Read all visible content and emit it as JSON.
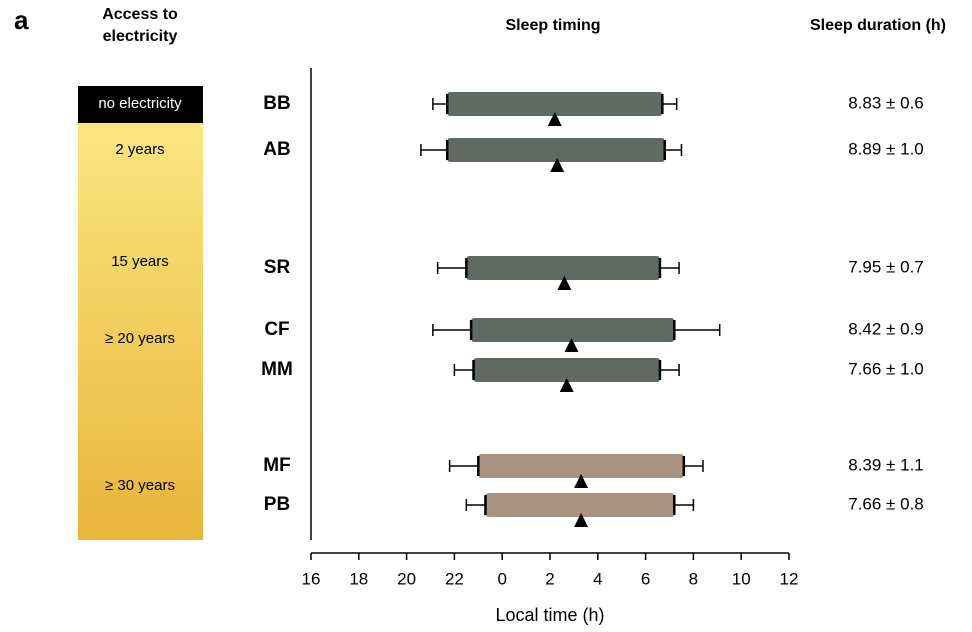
{
  "chart_data": {
    "type": "range",
    "panel_label": "a",
    "title": "Sleep timing",
    "duration_title": "Sleep duration (h)",
    "xlabel": "Local time (h)",
    "xlim": [
      16,
      36
    ],
    "xticks": [
      16,
      18,
      20,
      22,
      {
        "value": 24,
        "label": "0"
      },
      {
        "value": 26,
        "label": "2"
      },
      {
        "value": 28,
        "label": "4"
      },
      {
        "value": 30,
        "label": "6"
      },
      {
        "value": 32,
        "label": "8"
      },
      {
        "value": 34,
        "label": "10"
      },
      {
        "value": 36,
        "label": "12"
      }
    ],
    "categories": [
      "BB",
      "AB",
      "SR",
      "CF",
      "MM",
      "MF",
      "PB"
    ],
    "colors": [
      "#5f6b62",
      "#5f6b62",
      "#5f6b62",
      "#5f6b62",
      "#5f6b62",
      "#a89282",
      "#a89282"
    ],
    "onset": [
      21.7,
      21.7,
      22.5,
      22.7,
      22.8,
      23.0,
      23.3
    ],
    "onset_sd": [
      0.6,
      1.1,
      1.2,
      1.6,
      0.8,
      1.2,
      0.8
    ],
    "offset": [
      30.7,
      30.8,
      30.6,
      31.2,
      30.6,
      31.6,
      31.2
    ],
    "offset_sd": [
      0.6,
      0.7,
      0.8,
      1.9,
      0.8,
      0.8,
      0.8
    ],
    "midpoint": [
      26.2,
      26.3,
      26.6,
      26.9,
      26.7,
      27.3,
      27.3
    ],
    "sleep_duration": [
      "8.83 ± 0.6",
      "8.89 ± 1.0",
      "7.95 ± 0.7",
      "8.42 ± 0.9",
      "7.66 ± 1.0",
      "8.39 ± 1.1",
      "7.66 ± 0.8"
    ],
    "access": {
      "title": "Access to electricity",
      "levels": [
        "no electricity",
        "2 years",
        "15 years",
        "≥ 20 years",
        "≥ 30 years"
      ]
    }
  }
}
